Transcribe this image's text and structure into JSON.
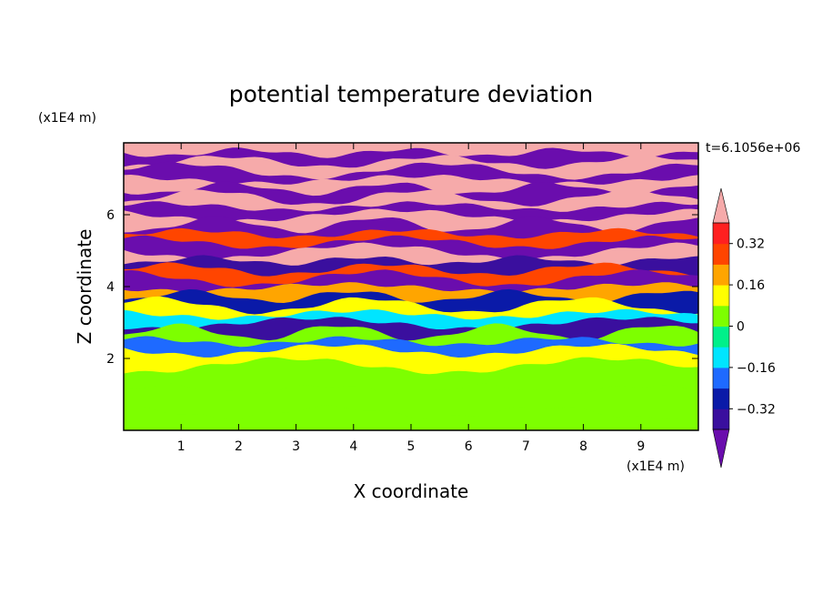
{
  "chart_data": {
    "type": "heatmap",
    "title": "potential temperature deviation",
    "xlabel": "X coordinate",
    "ylabel": "Z coordinate",
    "x_unit": "(x1E4 m)",
    "y_unit": "(x1E4 m)",
    "time_label": "t=6.1056e+06",
    "xlim": [
      0,
      10
    ],
    "ylim": [
      0,
      8
    ],
    "x_ticks": [
      "1",
      "2",
      "3",
      "4",
      "5",
      "6",
      "7",
      "8",
      "9"
    ],
    "x_tick_values": [
      1,
      2,
      3,
      4,
      5,
      6,
      7,
      8,
      9
    ],
    "y_ticks": [
      "2",
      "4",
      "6"
    ],
    "y_tick_values": [
      2,
      4,
      6
    ],
    "colorbar": {
      "levels": [
        -0.4,
        -0.32,
        -0.24,
        -0.16,
        -0.08,
        0,
        0.08,
        0.16,
        0.24,
        0.32,
        0.4
      ],
      "tick_labels": [
        "0.32",
        "0.16",
        "0",
        "−0.16",
        "−0.32"
      ],
      "tick_values": [
        0.32,
        0.16,
        0,
        -0.16,
        -0.32
      ],
      "colors": [
        "#6a0dad",
        "#3a0f9e",
        "#0a1aa8",
        "#1e6aff",
        "#00e5ff",
        "#00f08a",
        "#7dff00",
        "#ffff00",
        "#ffa500",
        "#ff4500",
        "#ff2020",
        "#f6aaaa"
      ],
      "extend": "both"
    },
    "layers": [
      {
        "z": 7.85,
        "value": 0.45
      },
      {
        "z": 7.6,
        "value": -0.45
      },
      {
        "z": 7.35,
        "value": 0.45
      },
      {
        "z": 7.1,
        "value": -0.45
      },
      {
        "z": 6.85,
        "value": 0.45
      },
      {
        "z": 6.6,
        "value": -0.45
      },
      {
        "z": 6.35,
        "value": 0.45
      },
      {
        "z": 6.1,
        "value": -0.45
      },
      {
        "z": 5.85,
        "value": 0.45
      },
      {
        "z": 5.6,
        "value": -0.45
      },
      {
        "z": 5.35,
        "value": 0.3
      },
      {
        "z": 5.1,
        "value": -0.45
      },
      {
        "z": 4.85,
        "value": 0.45
      },
      {
        "z": 4.6,
        "value": -0.35
      },
      {
        "z": 4.35,
        "value": 0.3
      },
      {
        "z": 4.1,
        "value": -0.45
      },
      {
        "z": 3.85,
        "value": 0.2
      },
      {
        "z": 3.6,
        "value": -0.3
      },
      {
        "z": 3.35,
        "value": 0.1
      },
      {
        "z": 3.1,
        "value": -0.1
      },
      {
        "z": 2.85,
        "value": -0.35
      },
      {
        "z": 2.6,
        "value": 0.05
      },
      {
        "z": 2.35,
        "value": -0.2
      },
      {
        "z": 2.1,
        "value": 0.1
      },
      {
        "z": 1.5,
        "value": 0.02
      },
      {
        "z": 0.8,
        "value": 0.0
      },
      {
        "z": 0.2,
        "value": 0.05
      }
    ]
  }
}
